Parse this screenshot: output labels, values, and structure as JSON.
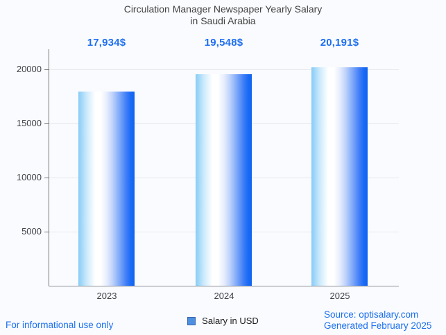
{
  "title": {
    "line1": "Circulation Manager Newspaper Yearly Salary",
    "line2": "in Saudi Arabia"
  },
  "chart_data": {
    "type": "bar",
    "categories": [
      "2023",
      "2024",
      "2025"
    ],
    "values": [
      17934,
      19548,
      20191
    ],
    "value_labels": [
      "17,934$",
      "19,548$",
      "20,191$"
    ],
    "series_name": "Salary in USD",
    "yticks": [
      "20000",
      "15000",
      "10000",
      "5000"
    ],
    "ytick_values": [
      20000,
      15000,
      10000,
      5000
    ],
    "ylim": [
      0,
      21860
    ],
    "grid": "on",
    "legend_position": "bottom",
    "title": "Circulation Manager Newspaper Yearly Salary in Saudi Arabia",
    "xlabel": "",
    "ylabel": ""
  },
  "legend": {
    "label": "Salary in USD"
  },
  "footer": {
    "left": "For informational use only",
    "source": "Source: optisalary.com",
    "generated": "Generated February 2025"
  },
  "colors": {
    "background": "#fafbfe",
    "accent_blue_text": "#1f6ff0",
    "bar_left": "#87ccf6",
    "bar_mid": "#ffffff",
    "bar_right": "#0f63f0",
    "axis": "#757575",
    "gridline": "#e4e7ec",
    "title_text": "#424242",
    "tick_text": "#404347",
    "legend_swatch_fill": "#4d8fe0",
    "legend_swatch_border": "#3867ad"
  }
}
